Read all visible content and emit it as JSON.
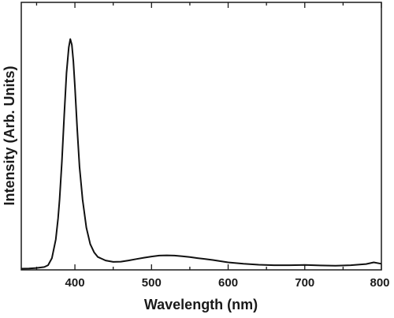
{
  "chart_data": {
    "type": "line",
    "xlabel": "Wavelength (nm)",
    "ylabel": "Intensity (Arb. Units)",
    "xlim": [
      330,
      800
    ],
    "ylim": [
      0,
      1.0
    ],
    "x_ticks_major": [
      400,
      500,
      600,
      700,
      800
    ],
    "x_ticks_minor": [
      350,
      450,
      550,
      650,
      750
    ],
    "y_ticks_shown": false,
    "grid": false,
    "legend": "none",
    "series": [
      {
        "color": "#111111",
        "x": [
          330,
          340,
          350,
          360,
          365,
          370,
          375,
          378,
          380,
          383,
          386,
          389,
          392,
          394,
          396,
          398,
          400,
          403,
          406,
          410,
          415,
          420,
          425,
          430,
          440,
          450,
          460,
          470,
          480,
          490,
          500,
          510,
          520,
          530,
          540,
          550,
          560,
          570,
          580,
          590,
          600,
          620,
          640,
          660,
          680,
          700,
          720,
          740,
          760,
          780,
          790,
          800
        ],
        "y": [
          0.005,
          0.006,
          0.008,
          0.012,
          0.02,
          0.05,
          0.13,
          0.22,
          0.3,
          0.46,
          0.66,
          0.84,
          0.95,
          0.985,
          0.96,
          0.89,
          0.78,
          0.6,
          0.44,
          0.3,
          0.18,
          0.11,
          0.075,
          0.055,
          0.04,
          0.034,
          0.035,
          0.04,
          0.046,
          0.052,
          0.057,
          0.061,
          0.062,
          0.061,
          0.058,
          0.055,
          0.05,
          0.046,
          0.042,
          0.037,
          0.032,
          0.026,
          0.022,
          0.02,
          0.02,
          0.021,
          0.019,
          0.018,
          0.02,
          0.025,
          0.032,
          0.026
        ]
      }
    ]
  }
}
